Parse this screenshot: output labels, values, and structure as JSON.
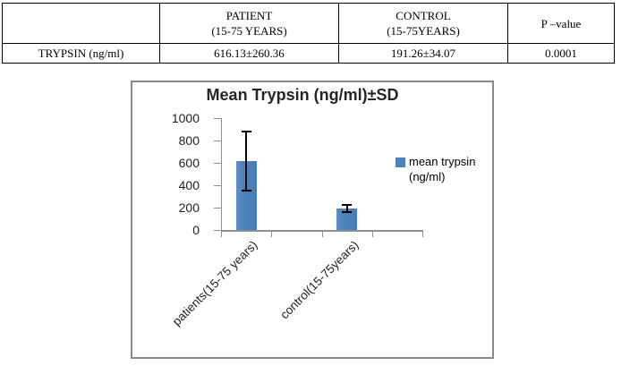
{
  "table": {
    "columns": [
      "",
      "PATIENT\n(15-75 YEARS)",
      "CONTROL\n(15-75YEARS)",
      "P –value"
    ],
    "rows": [
      {
        "label": "TRYPSIN (ng/ml)",
        "values": [
          "616.13±260.36",
          "191.26±34.07",
          "0.0001"
        ]
      }
    ]
  },
  "chart_data": {
    "type": "bar",
    "title": "Mean Trypsin (ng/ml)±SD",
    "categories": [
      "patients(15-75 years)",
      "control(15-75years)"
    ],
    "series": [
      {
        "name": "mean trypsin (ng/ml)",
        "values": [
          616.13,
          191.26
        ],
        "errors": [
          260.36,
          34.07
        ]
      }
    ],
    "legend_label": "mean trypsin\n(ng/ml)",
    "legend_position": "right",
    "xlabel": "",
    "ylabel": "",
    "ylim": [
      0,
      1000
    ],
    "yticks": [
      0,
      200,
      400,
      600,
      800,
      1000
    ],
    "grid": false,
    "bar_color": "#4F81BD",
    "error_bar_color": "#000000",
    "axis_color": "#8f8f8f",
    "title_color": "#262626"
  }
}
